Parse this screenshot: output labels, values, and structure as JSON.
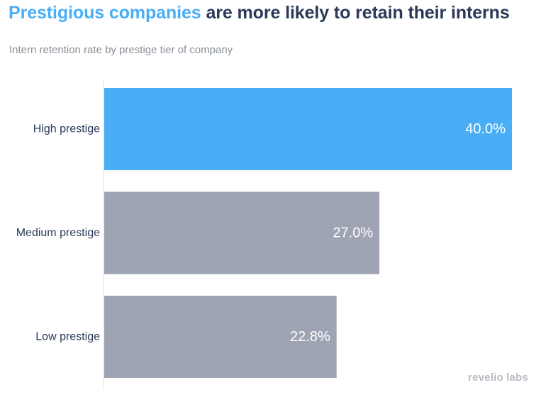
{
  "title": {
    "highlight": "Prestigious companies",
    "rest": " are more likely to retain their interns"
  },
  "subtitle": "Intern retention rate by prestige tier of company",
  "logo": "revelio labs",
  "colors": {
    "highlight_bar": "#49aef5",
    "other_bar": "#9ea4b3",
    "title_dark": "#2a3958",
    "title_accent": "#49aef5",
    "axis_line": "#e2e4e8",
    "category_text": "#2a3958",
    "value_text": "#ffffff"
  },
  "chart_data": {
    "type": "bar",
    "orientation": "horizontal",
    "title": "Prestigious companies are more likely to retain their interns",
    "subtitle": "Intern retention rate by prestige tier of company",
    "categories": [
      "High prestige",
      "Medium prestige",
      "Low prestige"
    ],
    "values": [
      40.0,
      27.0,
      22.8
    ],
    "labels": [
      "40.0%",
      "27.0%",
      "22.8%"
    ],
    "highlight_index": 0,
    "xlim": [
      0,
      40
    ],
    "xlabel": "",
    "ylabel": "",
    "grid": false
  }
}
